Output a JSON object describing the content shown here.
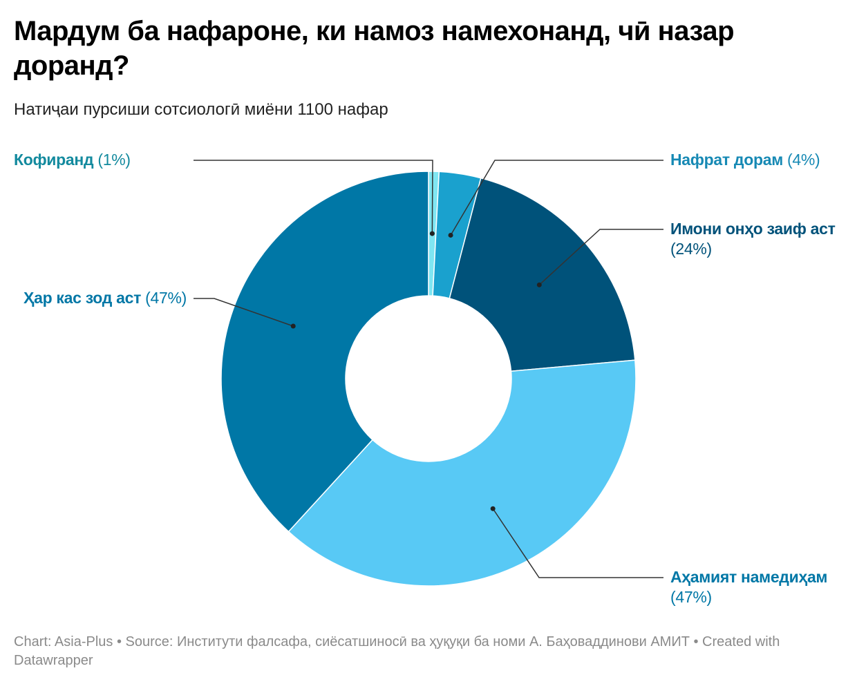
{
  "header": {
    "title": "Мардум ба нафароне, ки намоз намехонанд, чӣ назар доранд?",
    "subtitle": "Натиҷаи пурсиши сотсиологӣ миёни 1100 нафар"
  },
  "chart_data": {
    "type": "pie",
    "variant": "donut",
    "title": "Мардум ба нафароне, ки намоз намехонанд, чӣ назар доранд?",
    "subtitle": "Натиҷаи пурсиши сотсиологӣ миёни 1100 нафар",
    "slices": [
      {
        "label": "Кофиранд",
        "value_text": "(1%)",
        "value": 1,
        "color": "#7fe6f2",
        "label_color": "#138a9e"
      },
      {
        "label": "Нафрат дорам",
        "value_text": "(4%)",
        "value": 4,
        "color": "#1aa1ce",
        "label_color": "#1689b4"
      },
      {
        "label": "Имони онҳо заиф аст",
        "value_text": "(24%)",
        "value": 24,
        "color": "#00527a",
        "label_color": "#00527a"
      },
      {
        "label": "Аҳамият намедиҳам",
        "value_text": "(47%)",
        "value": 47,
        "color": "#58c9f5",
        "label_color": "#0077a6"
      },
      {
        "label": "Ҳар кас зод аст",
        "value_text": "(47%)",
        "value": 47,
        "color": "#0077a6",
        "label_color": "#0077a6"
      }
    ]
  },
  "footer": {
    "text": "Chart: Asia-Plus • Source: Институти фалсафа, сиёсатшиносӣ ва ҳуқуқи ба номи А. Баҳоваддинови АМИТ • Created with Datawrapper"
  }
}
